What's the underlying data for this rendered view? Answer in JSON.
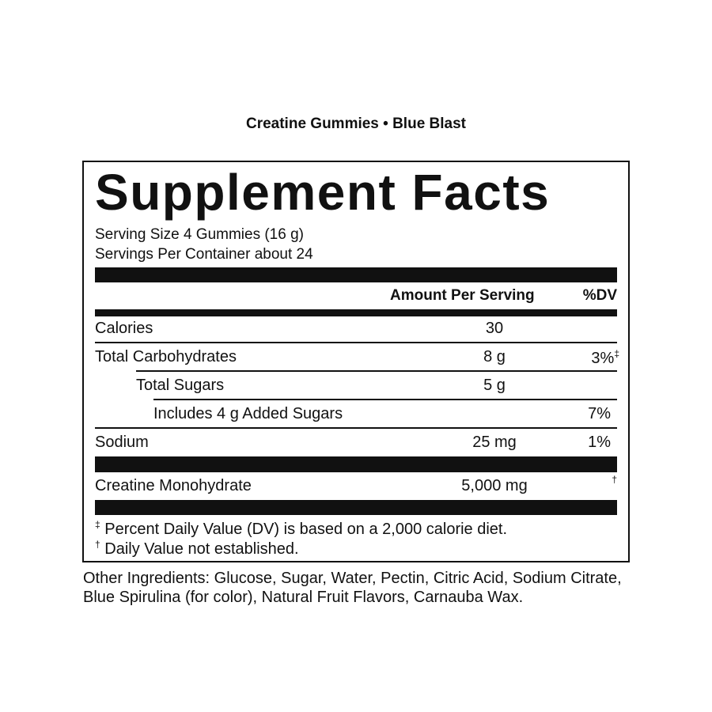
{
  "header": "Creatine Gummies • Blue Blast",
  "label": {
    "title": "Supplement Facts",
    "serving_size": "Serving Size 4 Gummies (16 g)",
    "servings_per_container": "Servings Per Container about 24",
    "columns": [
      "Amount Per Serving",
      "%DV"
    ],
    "rows": [
      {
        "name": "Calories",
        "amount": "30"
      },
      {
        "name": "Total Carbohydrates",
        "amount": "8 g",
        "dv": "3%",
        "mark": "‡"
      },
      {
        "name": "Total Sugars",
        "amount": "5 g"
      },
      {
        "name": "Includes 4 g Added Sugars",
        "dv": "7%"
      },
      {
        "name": "Sodium",
        "amount": "25 mg",
        "dv": "1%"
      },
      {
        "name": "Creatine Monohydrate",
        "amount": "5,000 mg",
        "mark": "†"
      }
    ],
    "footnotes": [
      {
        "symbol": "‡",
        "text": "Percent Daily Value (DV) is based on a 2,000 calorie diet."
      },
      {
        "symbol": "†",
        "text": "Daily Value not established."
      }
    ]
  },
  "other_ingredients": "Other Ingredients: Glucose, Sugar, Water, Pectin, Citric Acid, Sodium Citrate, Blue Spirulina (for color), Natural Fruit Flavors, Carnauba Wax."
}
